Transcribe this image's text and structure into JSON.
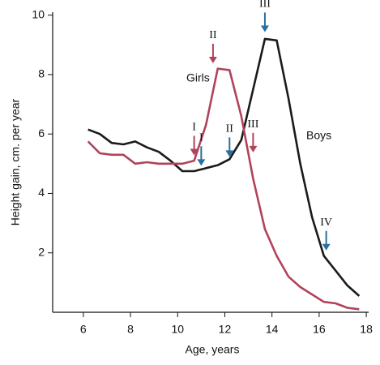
{
  "chart_data": {
    "type": "line",
    "xlabel": "Age, years",
    "ylabel": "Height gain, cm. per year",
    "x": [
      6.2,
      6.7,
      7.2,
      7.7,
      8.2,
      8.7,
      9.2,
      9.7,
      10.2,
      10.7,
      11.2,
      11.7,
      12.2,
      12.7,
      13.2,
      13.7,
      14.2,
      14.7,
      15.2,
      15.7,
      16.2,
      16.7,
      17.2,
      17.7
    ],
    "series": [
      {
        "name": "Boys",
        "color": "#1a1a1a",
        "values": [
          6.15,
          6.0,
          5.7,
          5.65,
          5.75,
          5.55,
          5.4,
          5.1,
          4.75,
          4.75,
          4.85,
          4.95,
          5.15,
          5.8,
          7.5,
          9.2,
          9.15,
          7.2,
          5.0,
          3.2,
          1.9,
          1.4,
          0.9,
          0.55
        ]
      },
      {
        "name": "Girls",
        "color": "#b0435a",
        "values": [
          5.75,
          5.35,
          5.3,
          5.3,
          5.0,
          5.05,
          5.0,
          5.0,
          5.0,
          5.1,
          6.3,
          8.2,
          8.15,
          6.6,
          4.5,
          2.8,
          1.9,
          1.2,
          0.85,
          0.6,
          0.35,
          0.3,
          0.15,
          0.1
        ]
      }
    ],
    "annotations": [
      {
        "text": "I",
        "x": 10.7,
        "y": 5.2,
        "color": "#b0435a"
      },
      {
        "text": "II",
        "x": 11.5,
        "y": 8.3,
        "color": "#b0435a"
      },
      {
        "text": "III",
        "x": 13.2,
        "y": 5.3,
        "color": "#b0435a"
      },
      {
        "text": "I",
        "x": 11.0,
        "y": 4.85,
        "color": "#2a6f9e"
      },
      {
        "text": "II",
        "x": 12.2,
        "y": 5.15,
        "color": "#2a6f9e"
      },
      {
        "text": "III",
        "x": 13.7,
        "y": 9.35,
        "color": "#2a6f9e"
      },
      {
        "text": "IV",
        "x": 16.3,
        "y": 2.0,
        "color": "#2a6f9e"
      }
    ],
    "xlim": [
      4.7,
      18.1
    ],
    "xticks": [
      6,
      8,
      10,
      12,
      14,
      16,
      18
    ],
    "ylim": [
      0,
      10.1
    ],
    "yticks": [
      2,
      4,
      6,
      8,
      10
    ]
  }
}
